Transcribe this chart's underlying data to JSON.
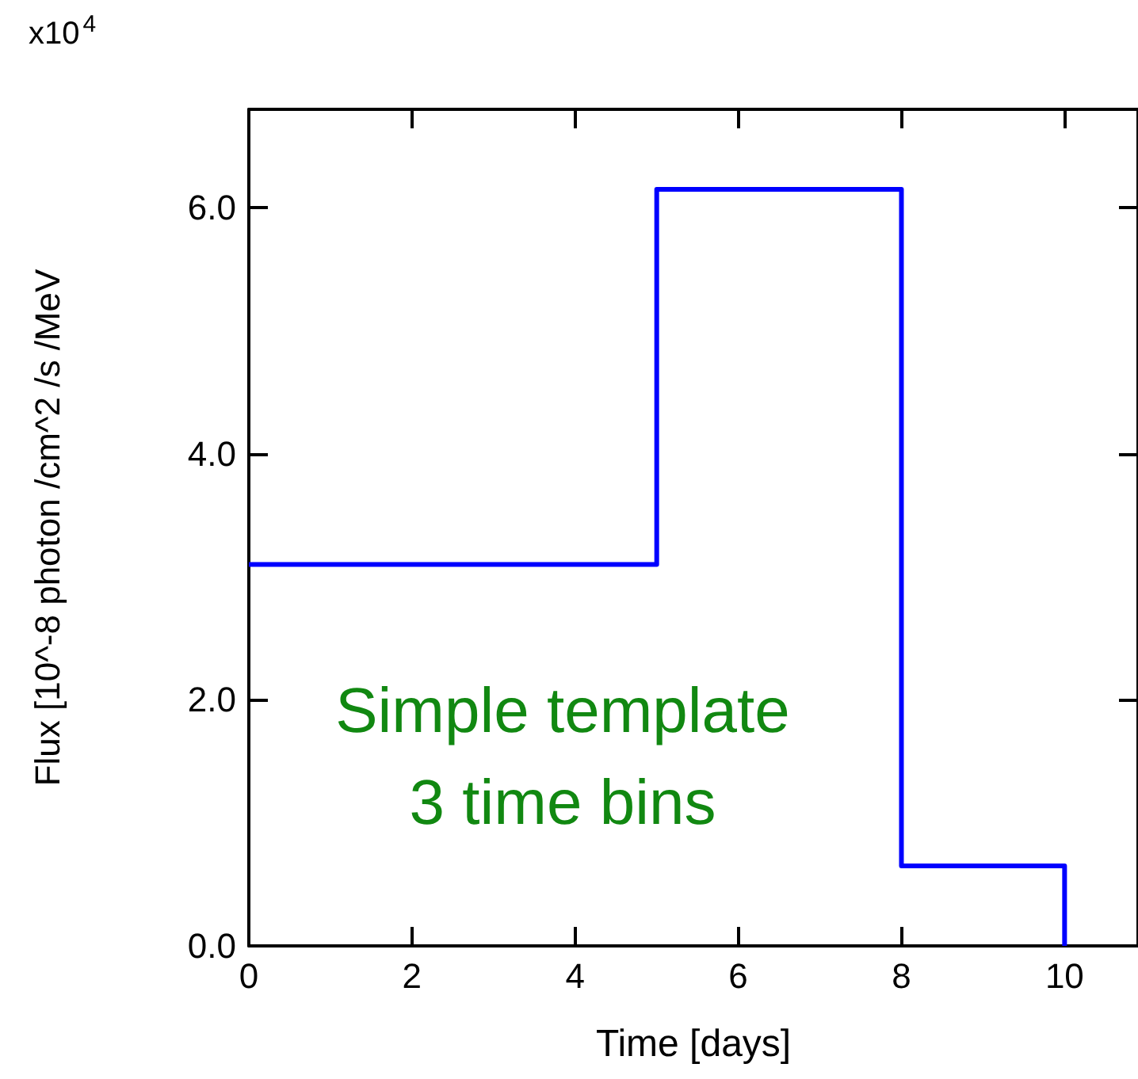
{
  "chart_data": {
    "type": "step",
    "xlabel": "Time [days]",
    "ylabel": "Flux [10^-8 photon /cm^2 /s /MeV",
    "x": [
      0,
      5,
      8,
      10
    ],
    "series": [
      {
        "color": "#0000ff",
        "values": [
          3.1,
          6.15,
          0.65,
          0
        ]
      }
    ],
    "xlim": [
      0,
      10.9
    ],
    "xticks": [
      0,
      2,
      4,
      6,
      8,
      10
    ],
    "ylim": [
      0,
      6.8
    ],
    "yticks": [
      {
        "value": 0,
        "label": "0.0"
      },
      {
        "value": 2,
        "label": "2.0"
      },
      {
        "value": 4,
        "label": "4.0"
      },
      {
        "value": 6,
        "label": "6.0"
      }
    ],
    "annotations": [
      "x10$^{4}$",
      "Simple template\n3 time bins"
    ],
    "grid": false,
    "marker": "none",
    "line_style": "solid"
  }
}
